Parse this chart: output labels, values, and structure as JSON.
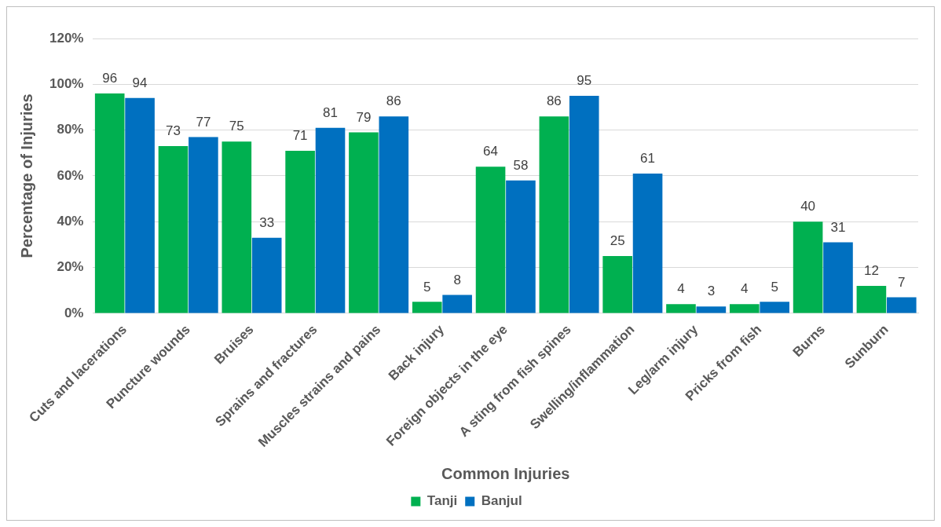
{
  "chart_data": {
    "type": "bar",
    "xlabel": "Common Injuries",
    "ylabel": "Percentage of Injuries",
    "categories": [
      "Cuts and lacerations",
      "Puncture wounds",
      "Bruises",
      "Sprains and fractures",
      "Muscles strains and pains",
      "Back injury",
      "Foreign objects in the eye",
      "A sting from fish spines",
      "Swelling/inflammation",
      "Leg/arm injury",
      "Pricks from fish",
      "Burns",
      "Sunburn"
    ],
    "series": [
      {
        "name": "Tanji",
        "color": "#00b050",
        "values": [
          96,
          73,
          75,
          71,
          79,
          5,
          64,
          86,
          25,
          4,
          4,
          40,
          12
        ]
      },
      {
        "name": "Banjul",
        "color": "#0070c0",
        "values": [
          94,
          77,
          33,
          81,
          86,
          8,
          58,
          95,
          61,
          3,
          5,
          31,
          7
        ]
      }
    ],
    "ylim": [
      0,
      120
    ],
    "yticks": [
      {
        "value": 0,
        "label": "0%"
      },
      {
        "value": 20,
        "label": "20%"
      },
      {
        "value": 40,
        "label": "40%"
      },
      {
        "value": 60,
        "label": "60%"
      },
      {
        "value": 80,
        "label": "80%"
      },
      {
        "value": 100,
        "label": "100%"
      },
      {
        "value": 120,
        "label": "120%"
      }
    ],
    "grid": "y",
    "legend": "bottom",
    "data_labels": true
  }
}
